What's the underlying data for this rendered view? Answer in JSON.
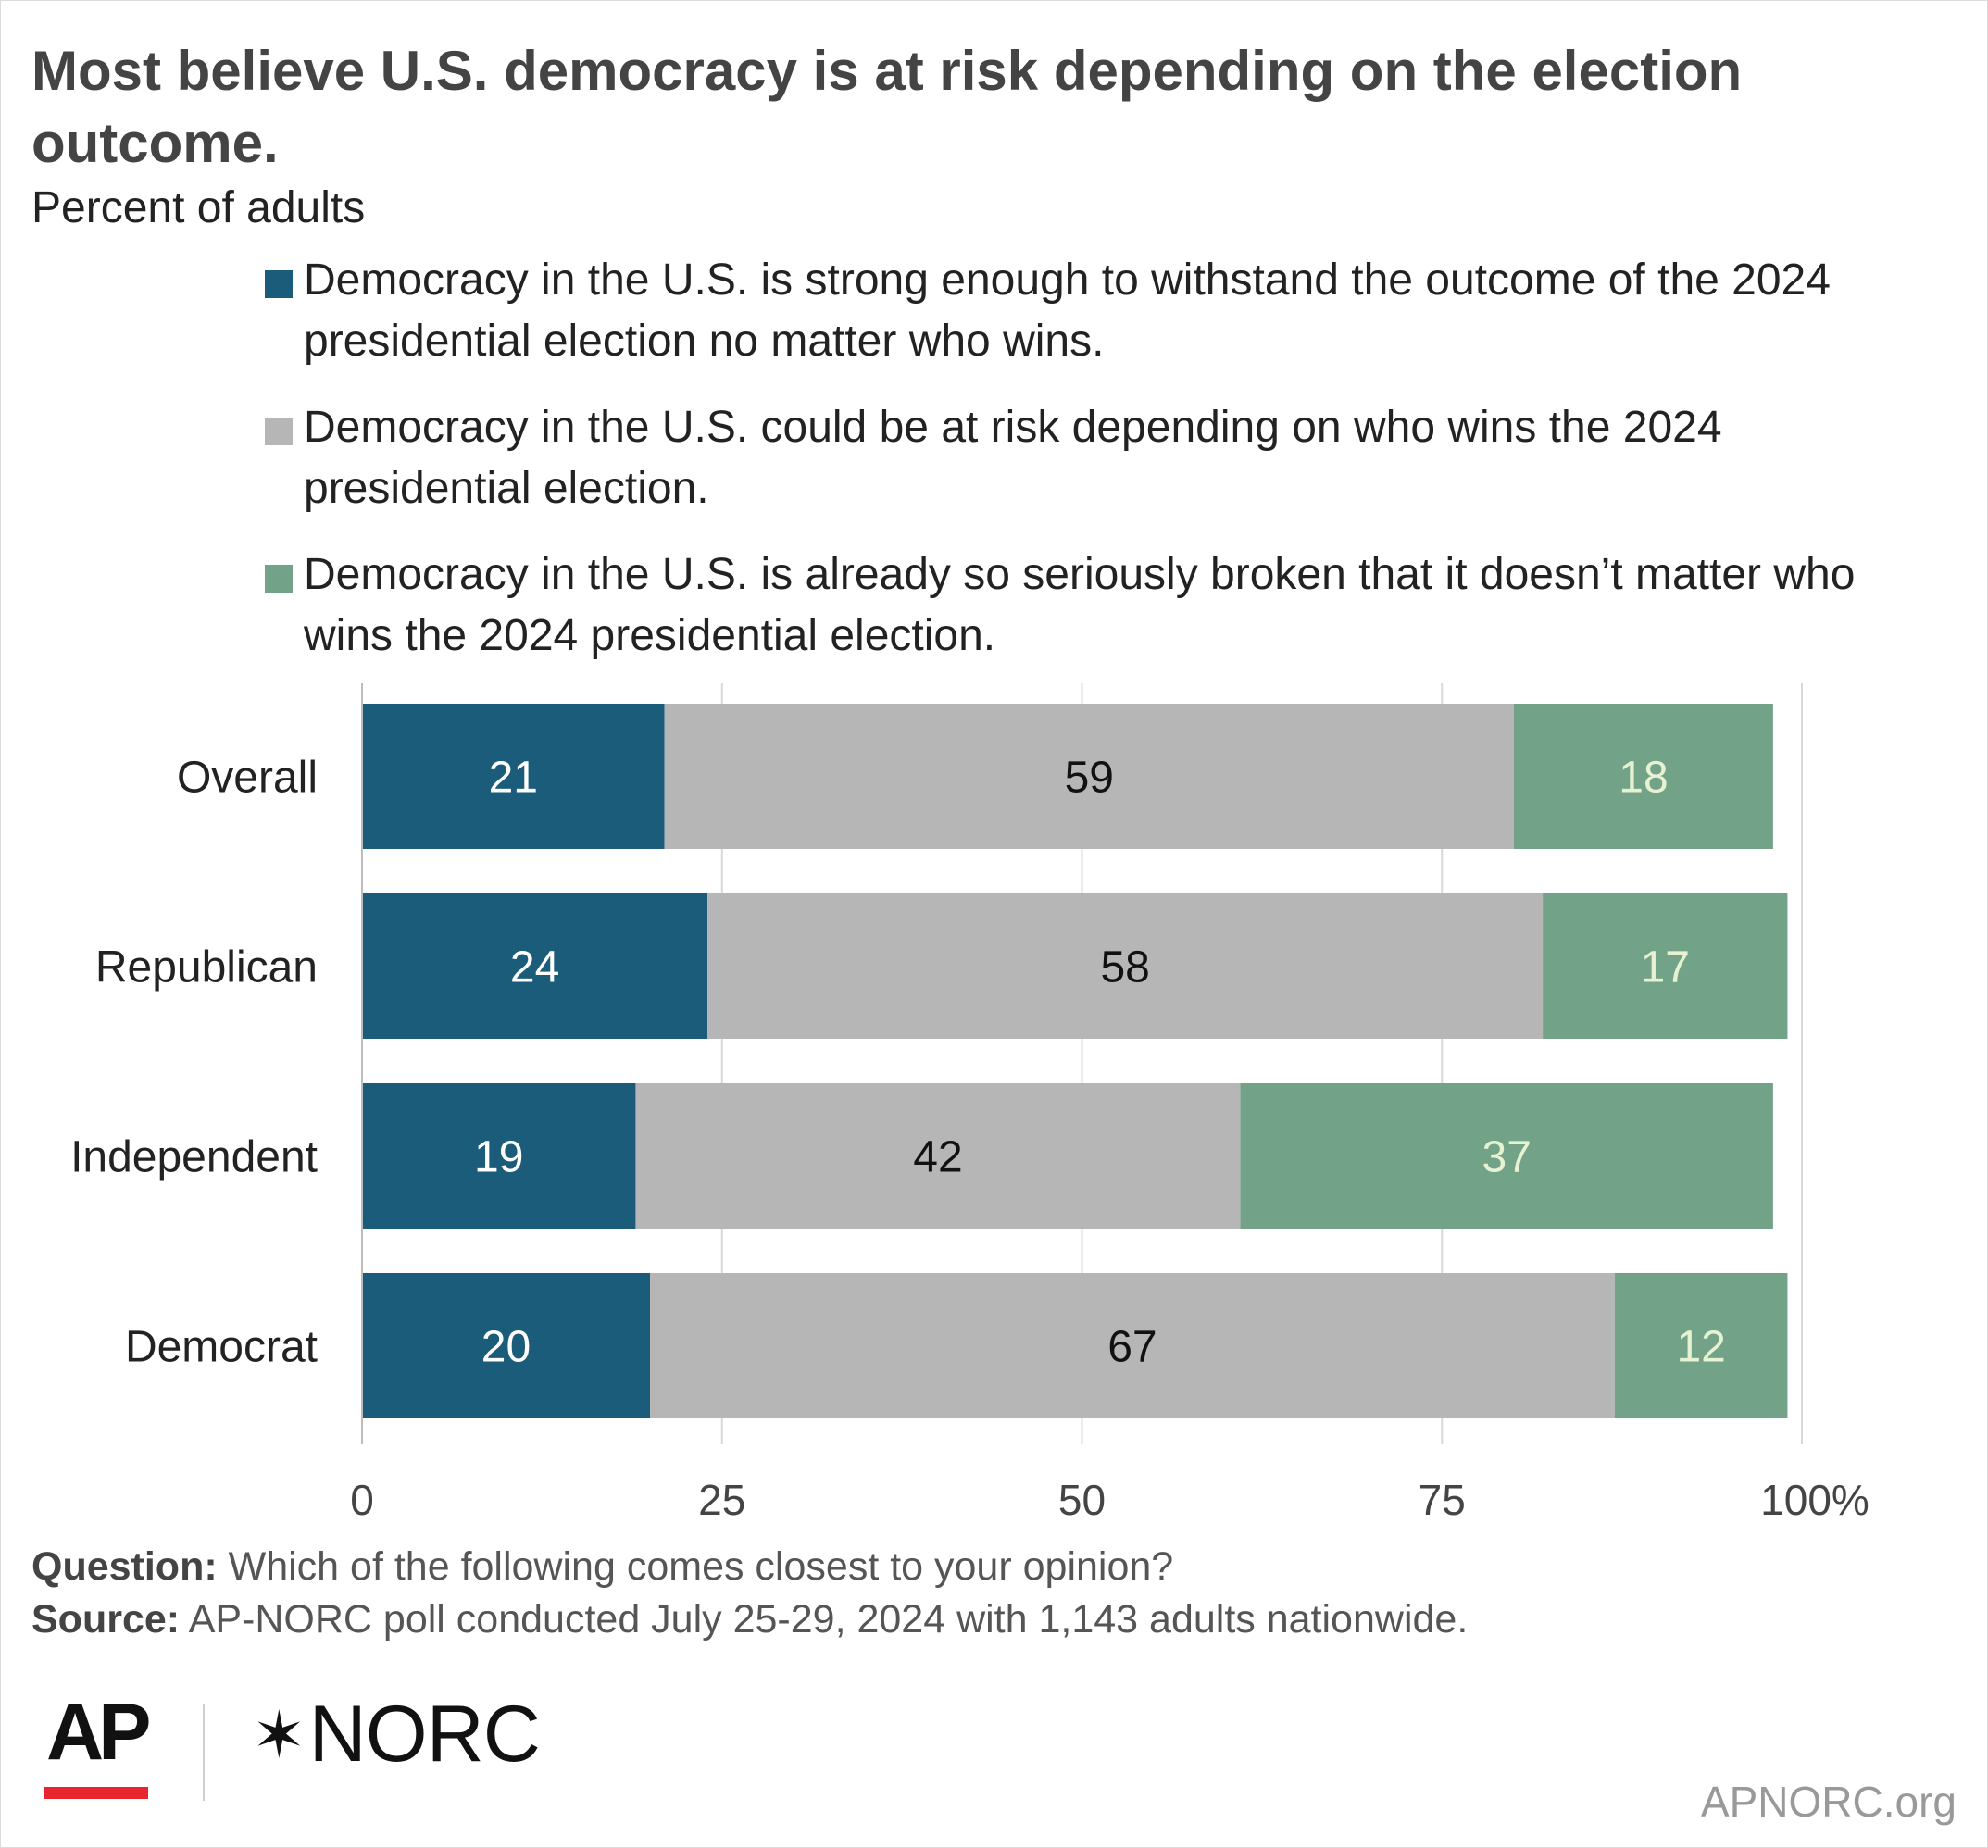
{
  "title": "Most believe U.S. democracy is at risk depending on the election outcome.",
  "subtitle": "Percent of adults",
  "colors": {
    "strong": "#1a5c7a",
    "at_risk": "#b6b6b6",
    "broken": "#72a388",
    "grid": "#d8d8d8"
  },
  "chart_data": {
    "type": "bar",
    "orientation": "horizontal",
    "stacked": true,
    "categories": [
      "Overall",
      "Republican",
      "Independent",
      "Democrat"
    ],
    "series": [
      {
        "name": "Democracy in the U.S. is strong enough to withstand the outcome of the 2024 presidential election no matter who wins.",
        "values": [
          21,
          24,
          19,
          20
        ],
        "color": "#1a5c7a",
        "label_color": "#ffffff"
      },
      {
        "name": "Democracy in the U.S. could be at risk depending on who wins the 2024 presidential election.",
        "values": [
          59,
          58,
          42,
          67
        ],
        "color": "#b6b6b6",
        "label_color": "#111111"
      },
      {
        "name": "Democracy in the U.S. is already so seriously broken that it doesn’t matter who wins the 2024 presidential election.",
        "values": [
          18,
          17,
          37,
          12
        ],
        "color": "#72a388",
        "label_color": "#e6f2d2"
      }
    ],
    "xlim": [
      0,
      100
    ],
    "xticks": [
      0,
      25,
      50,
      75,
      100
    ],
    "xtick_labels": [
      "0",
      "25",
      "50",
      "75",
      "100%"
    ],
    "grid": true,
    "legend_position": "top"
  },
  "footer": {
    "question_label": "Question:",
    "question_text": "Which of the following comes closest to your opinion?",
    "source_label": "Source:",
    "source_text": "AP-NORC poll conducted July 25-29, 2024 with 1,143 adults nationwide."
  },
  "logos": {
    "ap": "AP",
    "norc_star": "✶",
    "norc": "NORC"
  },
  "site": "APNORC.org"
}
